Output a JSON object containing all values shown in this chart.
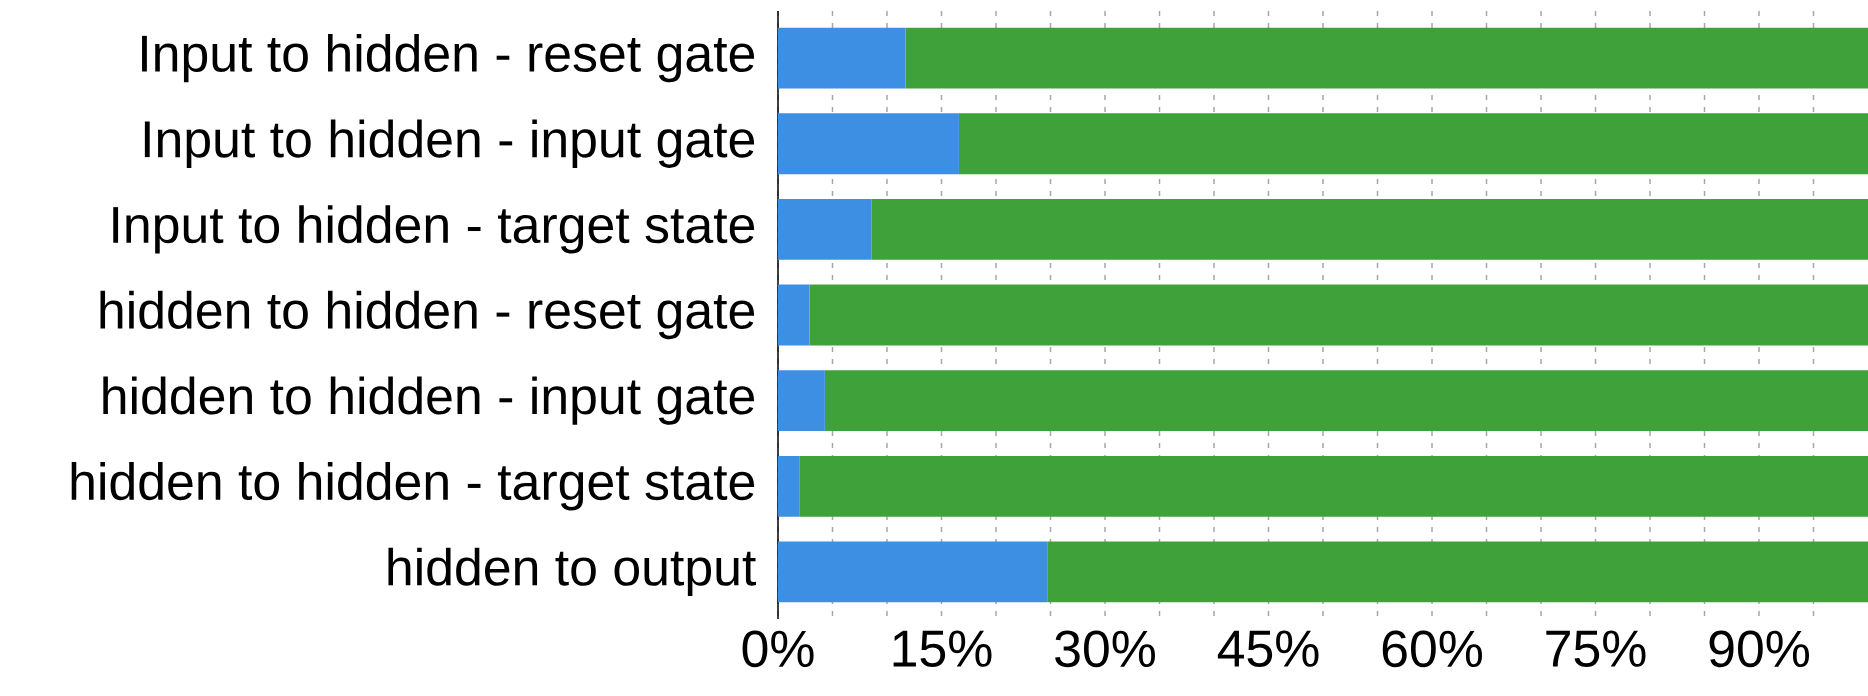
{
  "chart_data": {
    "type": "bar",
    "orientation": "horizontal",
    "stacked": true,
    "categories": [
      "Input to hidden - reset gate",
      "Input to hidden - input gate",
      "Input to hidden - target state",
      "hidden to hidden - reset gate",
      "hidden to hidden - input gate",
      "hidden to hidden - target state",
      "hidden to output"
    ],
    "series": [
      {
        "color": "#3d8fe3",
        "values": [
          11.7,
          16.6,
          8.6,
          2.9,
          4.3,
          2.0,
          24.7
        ]
      },
      {
        "color": "#3ea13a",
        "values": [
          88.3,
          83.4,
          91.4,
          97.1,
          95.7,
          98.0,
          75.3
        ]
      }
    ],
    "xlim": [
      0,
      100
    ],
    "xticks": [
      {
        "value": 0,
        "label": "0%"
      },
      {
        "value": 5,
        "label": null
      },
      {
        "value": 10,
        "label": null
      },
      {
        "value": 15,
        "label": "15%"
      },
      {
        "value": 20,
        "label": null
      },
      {
        "value": 25,
        "label": null
      },
      {
        "value": 30,
        "label": "30%"
      },
      {
        "value": 35,
        "label": null
      },
      {
        "value": 40,
        "label": null
      },
      {
        "value": 45,
        "label": "45%"
      },
      {
        "value": 50,
        "label": null
      },
      {
        "value": 55,
        "label": null
      },
      {
        "value": 60,
        "label": "60%"
      },
      {
        "value": 65,
        "label": null
      },
      {
        "value": 70,
        "label": null
      },
      {
        "value": 75,
        "label": "75%"
      },
      {
        "value": 80,
        "label": null
      },
      {
        "value": 85,
        "label": null
      },
      {
        "value": 90,
        "label": "90%"
      },
      {
        "value": 95,
        "label": null
      }
    ],
    "grid": "x"
  }
}
